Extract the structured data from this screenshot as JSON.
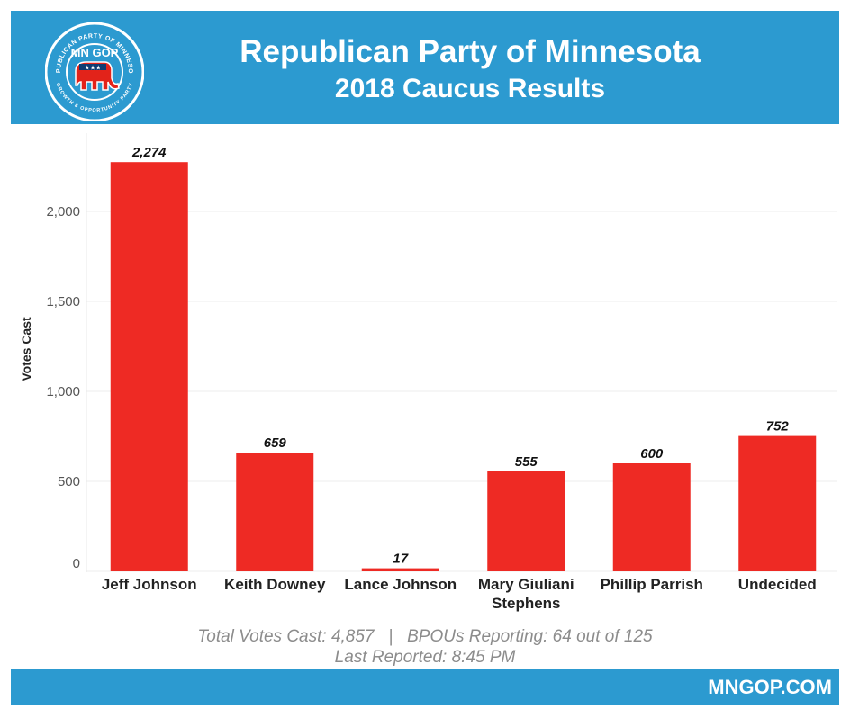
{
  "header": {
    "logo_text": "MN GOP",
    "logo_ring_top": "REPUBLICAN PARTY OF MINNESOTA",
    "logo_ring_bottom": "GROWTH & OPPORTUNITY PARTY",
    "title_line1": "Republican Party of Minnesota",
    "title_line2": "2018 Caucus Results"
  },
  "chart_data": {
    "type": "bar",
    "categories": [
      "Jeff Johnson",
      "Keith Downey",
      "Lance Johnson",
      "Mary Giuliani Stephens",
      "Phillip Parrish",
      "Undecided"
    ],
    "category_lines": [
      [
        "Jeff Johnson"
      ],
      [
        "Keith Downey"
      ],
      [
        "Lance Johnson"
      ],
      [
        "Mary Giuliani",
        "Stephens"
      ],
      [
        "Phillip Parrish"
      ],
      [
        "Undecided"
      ]
    ],
    "values": [
      2274,
      659,
      17,
      555,
      600,
      752
    ],
    "data_labels": [
      "2,274",
      "659",
      "17",
      "555",
      "600",
      "752"
    ],
    "ylabel": "Votes Cast",
    "yticks": [
      0,
      500,
      1000,
      1500,
      2000
    ],
    "ytick_labels": [
      "0",
      "500",
      "1,000",
      "1,500",
      "2,000"
    ],
    "ylim": [
      0,
      2450
    ],
    "grid": true,
    "bar_color": "#ee2a24"
  },
  "footer": {
    "stats_line": "Total Votes Cast: 4,857   |   BPOUs Reporting: 64 out of 125",
    "reported_line": "Last Reported: 8:45 PM",
    "website": "MNGOP.COM"
  },
  "colors": {
    "brand_blue": "#2c9ad0",
    "bar_red": "#ee2a24",
    "logo_red": "#e2231a",
    "logo_navy": "#0f3c73"
  }
}
